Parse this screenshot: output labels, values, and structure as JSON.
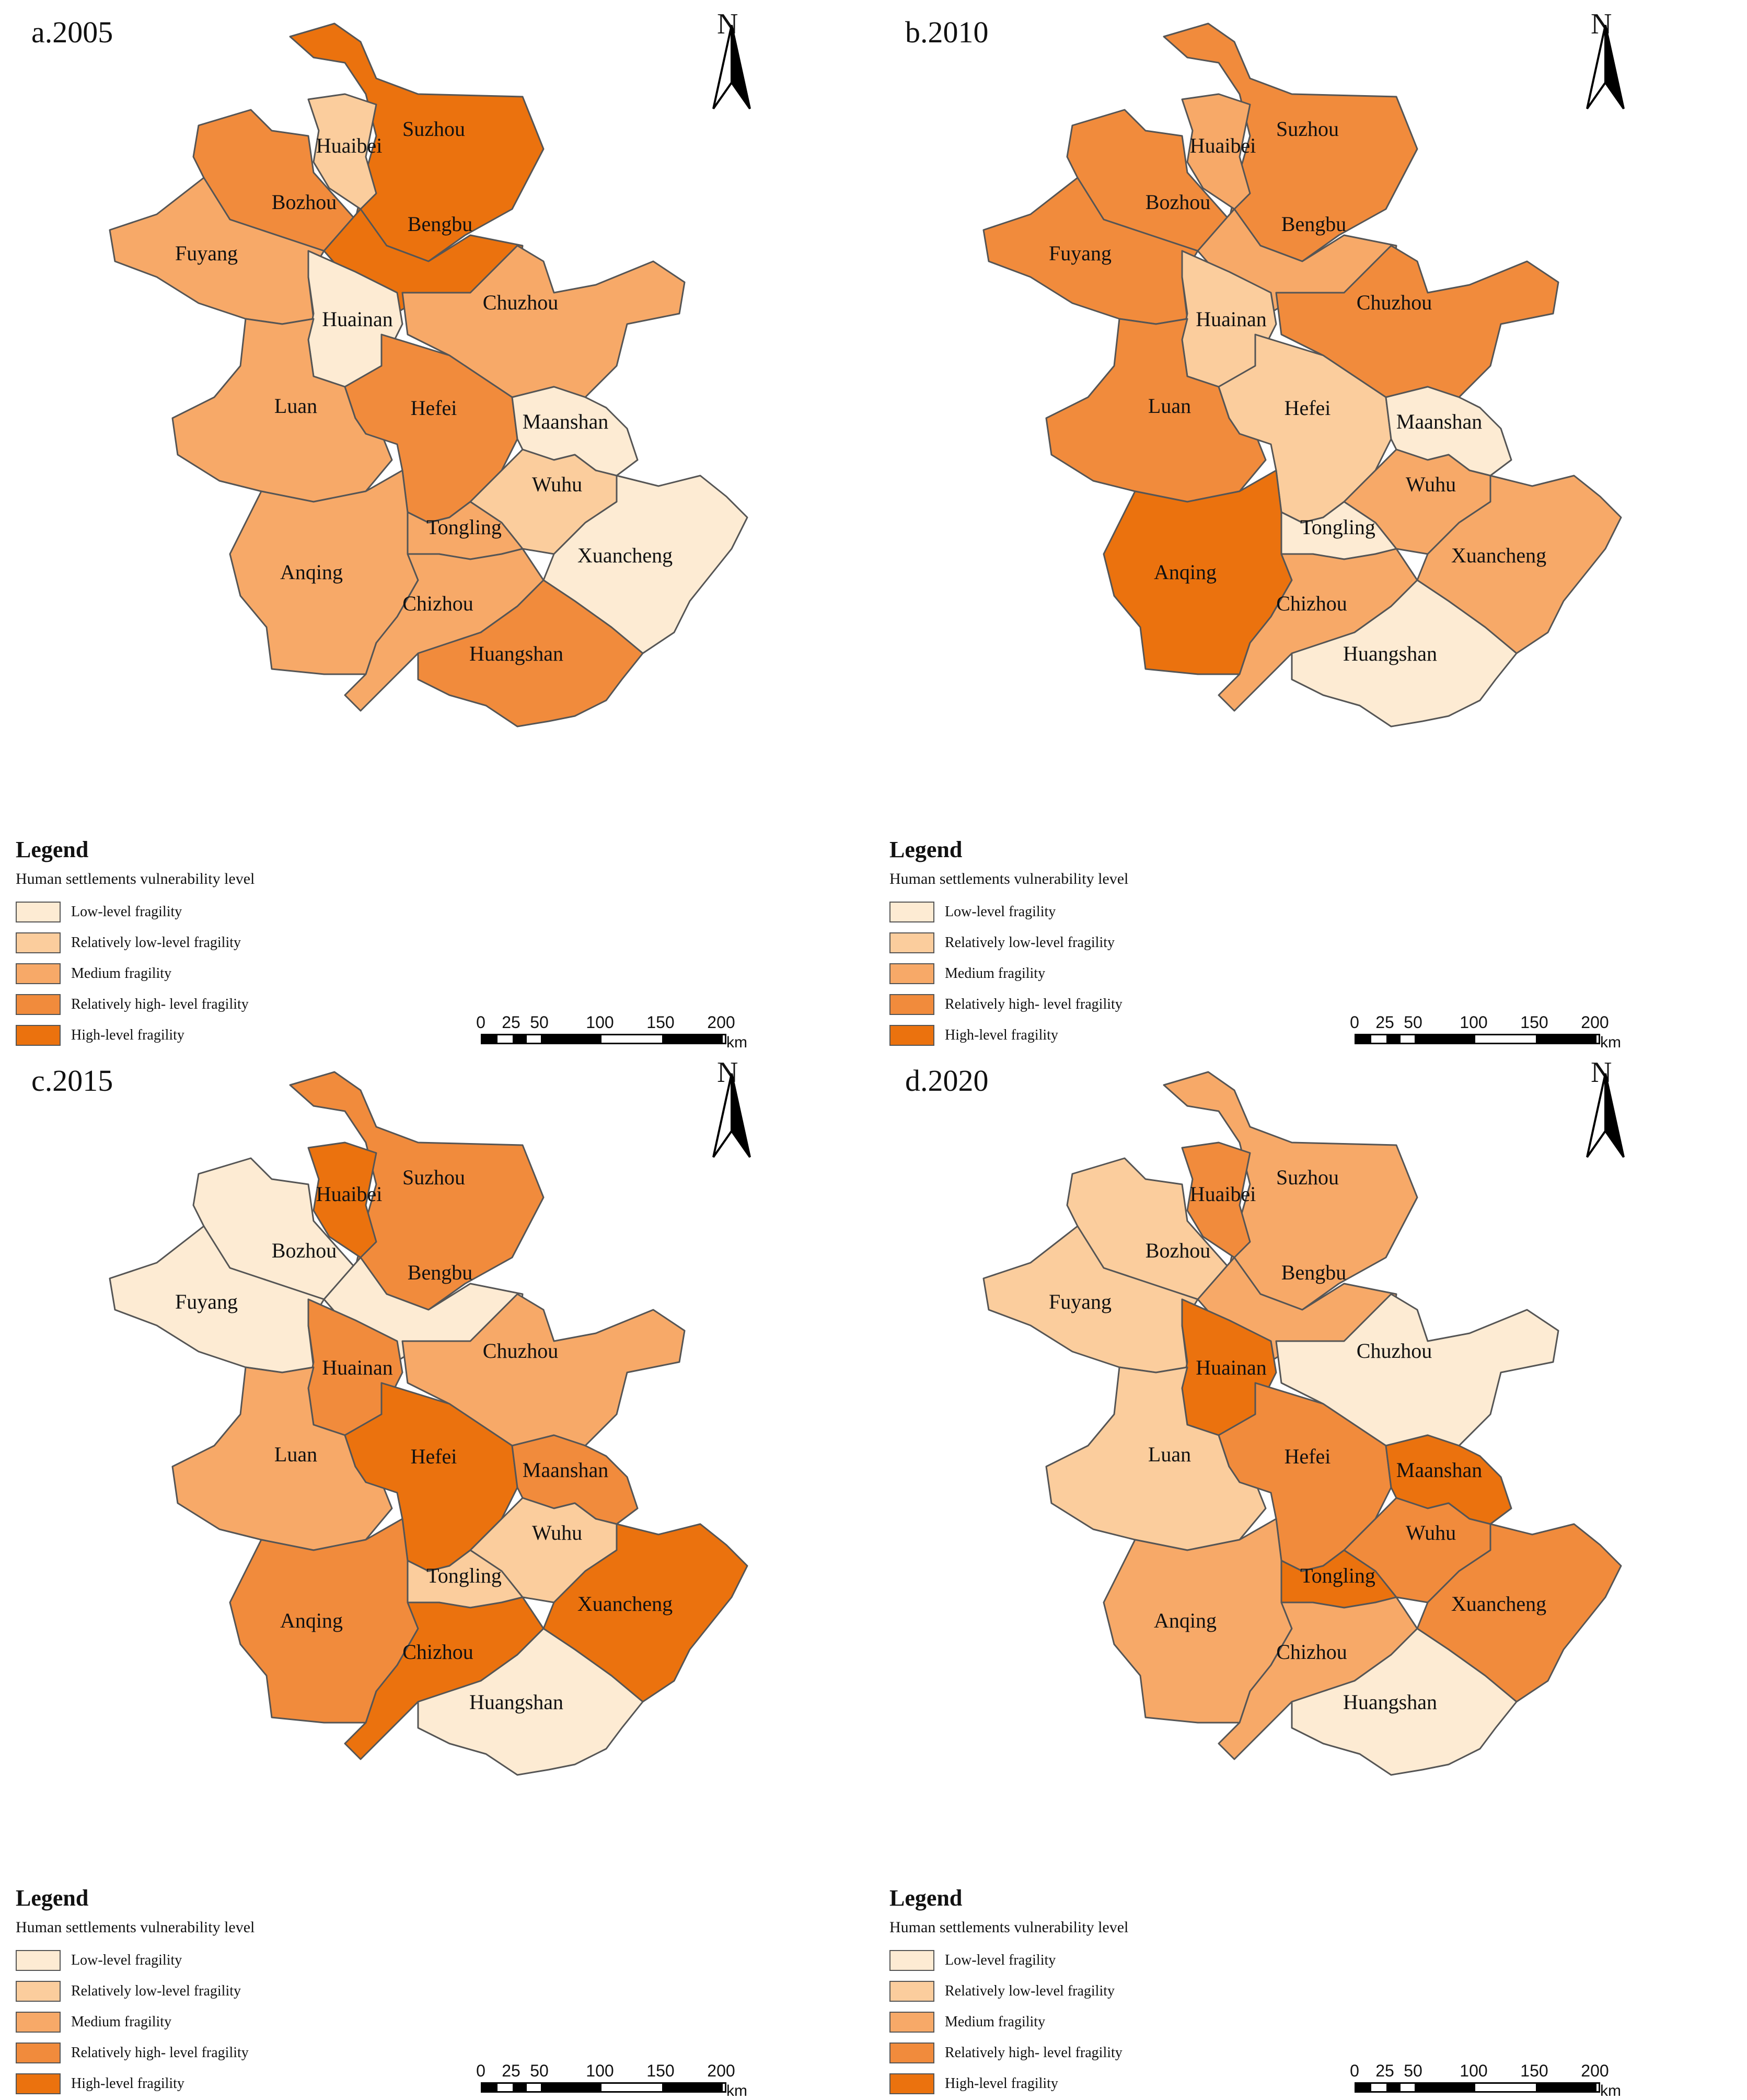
{
  "colors": {
    "low": "#fdebd3",
    "rel_low": "#fbcd9d",
    "medium": "#f7a968",
    "rel_high": "#f18b3c",
    "high": "#eb720e",
    "border": "#555555"
  },
  "legend": {
    "title": "Legend",
    "subtitle": "Human settlements vulnerability level",
    "items": [
      {
        "level": "low",
        "label": "Low-level fragility"
      },
      {
        "level": "rel_low",
        "label": "Relatively low-level fragility"
      },
      {
        "level": "medium",
        "label": "Medium fragility"
      },
      {
        "level": "rel_high",
        "label": "Relatively high- level  fragility"
      },
      {
        "level": "high",
        "label": "High-level fragility"
      }
    ]
  },
  "north_arrow": {
    "label": "N"
  },
  "scale_bar": {
    "ticks": [
      "0",
      "25",
      "50",
      "100",
      "150",
      "200"
    ],
    "unit": "km"
  },
  "cities": [
    "Suzhou",
    "Huaibei",
    "Bozhou",
    "Bengbu",
    "Fuyang",
    "Huainan",
    "Chuzhou",
    "Luan",
    "Hefei",
    "Maanshan",
    "Wuhu",
    "Tongling",
    "Xuancheng",
    "Anqing",
    "Chizhou",
    "Huangshan"
  ],
  "panels": [
    {
      "title": "a.2005",
      "levels": {
        "Suzhou": "high",
        "Huaibei": "rel_low",
        "Bozhou": "rel_high",
        "Bengbu": "high",
        "Fuyang": "medium",
        "Huainan": "low",
        "Chuzhou": "medium",
        "Luan": "medium",
        "Hefei": "rel_high",
        "Maanshan": "low",
        "Wuhu": "rel_low",
        "Tongling": "medium",
        "Xuancheng": "low",
        "Anqing": "medium",
        "Chizhou": "medium",
        "Huangshan": "rel_high"
      }
    },
    {
      "title": "b.2010",
      "levels": {
        "Suzhou": "rel_high",
        "Huaibei": "medium",
        "Bozhou": "rel_high",
        "Bengbu": "medium",
        "Fuyang": "rel_high",
        "Huainan": "rel_low",
        "Chuzhou": "rel_high",
        "Luan": "rel_high",
        "Hefei": "rel_low",
        "Maanshan": "low",
        "Wuhu": "medium",
        "Tongling": "low",
        "Xuancheng": "medium",
        "Anqing": "high",
        "Chizhou": "medium",
        "Huangshan": "low"
      }
    },
    {
      "title": "c.2015",
      "levels": {
        "Suzhou": "rel_high",
        "Huaibei": "high",
        "Bozhou": "low",
        "Bengbu": "low",
        "Fuyang": "low",
        "Huainan": "rel_high",
        "Chuzhou": "medium",
        "Luan": "medium",
        "Hefei": "high",
        "Maanshan": "rel_high",
        "Wuhu": "rel_low",
        "Tongling": "rel_low",
        "Xuancheng": "high",
        "Anqing": "rel_high",
        "Chizhou": "high",
        "Huangshan": "low"
      }
    },
    {
      "title": "d.2020",
      "levels": {
        "Suzhou": "medium",
        "Huaibei": "rel_high",
        "Bozhou": "rel_low",
        "Bengbu": "medium",
        "Fuyang": "rel_low",
        "Huainan": "high",
        "Chuzhou": "low",
        "Luan": "rel_low",
        "Hefei": "rel_high",
        "Maanshan": "high",
        "Wuhu": "rel_high",
        "Tongling": "high",
        "Xuancheng": "rel_high",
        "Anqing": "medium",
        "Chizhou": "medium",
        "Huangshan": "low"
      }
    }
  ]
}
